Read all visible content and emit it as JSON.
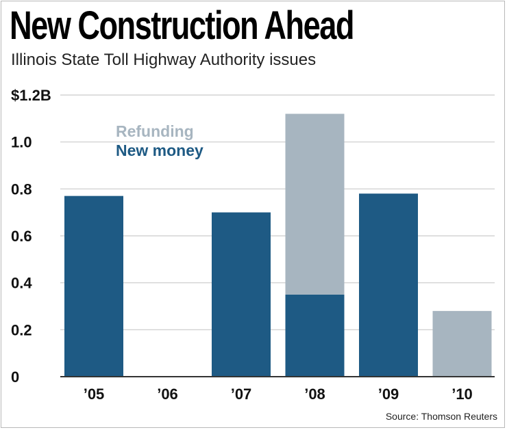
{
  "chart_data": {
    "type": "bar",
    "stacked": true,
    "title": "New Construction Ahead",
    "subtitle": "Illinois State Toll Highway Authority issues",
    "source": "Source: Thomson Reuters",
    "ylabel": "",
    "xlabel": "",
    "ylim": [
      0,
      1.2
    ],
    "yticks": [
      0,
      0.2,
      0.4,
      0.6,
      0.8,
      1.0,
      1.2
    ],
    "ytick_labels": [
      "0",
      "0.2",
      "0.4",
      "0.6",
      "0.8",
      "1.0",
      "$1.2B"
    ],
    "categories": [
      "’05",
      "’06",
      "’07",
      "’08",
      "’09",
      "’10"
    ],
    "series": [
      {
        "name": "New money",
        "color": "#1e5a84",
        "values": [
          0.77,
          0,
          0.7,
          0.35,
          0.78,
          0
        ]
      },
      {
        "name": "Refunding",
        "color": "#a7b5c0",
        "values": [
          0,
          0,
          0,
          0.77,
          0,
          0.28
        ]
      }
    ],
    "legend": [
      "Refunding",
      "New money"
    ],
    "grid": true,
    "colors": {
      "gridline": "#c9c9c9",
      "axis": "#333333"
    }
  }
}
